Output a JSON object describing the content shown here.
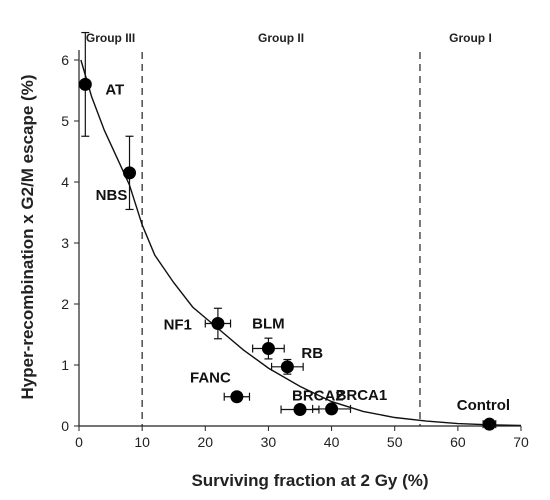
{
  "chart_data": {
    "type": "scatter",
    "xlabel": "Surviving fraction at 2 Gy (%)",
    "ylabel": "Hyper-recombination  x G2/M escape (%)",
    "xlim": [
      0,
      70
    ],
    "ylim": [
      0,
      6
    ],
    "xticks": [
      0,
      10,
      20,
      30,
      40,
      50,
      60,
      70
    ],
    "yticks": [
      0,
      1,
      2,
      3,
      4,
      5,
      6
    ],
    "grid": false,
    "points": [
      {
        "label": "AT",
        "x": 1,
        "y": 5.6,
        "xerr": 0,
        "yerr": 0.85
      },
      {
        "label": "NBS",
        "x": 8,
        "y": 4.15,
        "xerr": 0,
        "yerr": 0.6
      },
      {
        "label": "NF1",
        "x": 22,
        "y": 1.68,
        "xerr": 2,
        "yerr": 0.25
      },
      {
        "label": "BLM",
        "x": 30,
        "y": 1.27,
        "xerr": 2.5,
        "yerr": 0.17
      },
      {
        "label": "RB",
        "x": 33,
        "y": 0.97,
        "xerr": 2.5,
        "yerr": 0.12
      },
      {
        "label": "FANC",
        "x": 25,
        "y": 0.48,
        "xerr": 2,
        "yerr": 0.05
      },
      {
        "label": "BRCA2",
        "x": 35,
        "y": 0.27,
        "xerr": 3,
        "yerr": 0.05
      },
      {
        "label": "BRCA1",
        "x": 40,
        "y": 0.28,
        "xerr": 3,
        "yerr": 0.05
      },
      {
        "label": "Control",
        "x": 65,
        "y": 0.03,
        "xerr": 1,
        "yerr": 0
      }
    ],
    "curve": [
      [
        0.3,
        6.0
      ],
      [
        2,
        5.4
      ],
      [
        4,
        4.85
      ],
      [
        6,
        4.4
      ],
      [
        8,
        3.95
      ],
      [
        10,
        3.3
      ],
      [
        12,
        2.8
      ],
      [
        15,
        2.35
      ],
      [
        18,
        1.95
      ],
      [
        22,
        1.6
      ],
      [
        26,
        1.25
      ],
      [
        30,
        0.95
      ],
      [
        35,
        0.65
      ],
      [
        40,
        0.4
      ],
      [
        45,
        0.24
      ],
      [
        50,
        0.14
      ],
      [
        55,
        0.08
      ],
      [
        60,
        0.04
      ],
      [
        65,
        0.02
      ],
      [
        70,
        0.01
      ]
    ],
    "group_dividers": [
      10,
      54
    ],
    "groups": [
      {
        "label": "Group III",
        "x": 5
      },
      {
        "label": "Group II",
        "x": 32
      },
      {
        "label": "Group I",
        "x": 62
      }
    ]
  }
}
